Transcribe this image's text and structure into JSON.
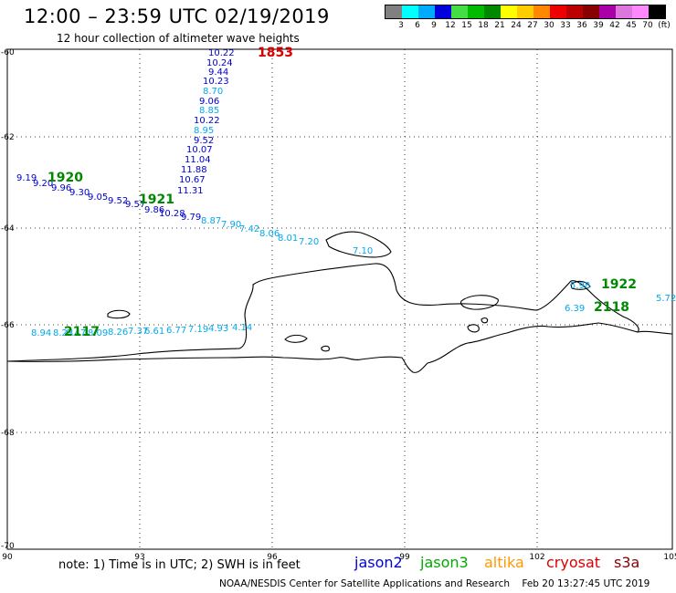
{
  "header": {
    "title": "12:00 – 23:59 UTC 02/19/2019",
    "subtitle": "12 hour collection of altimeter wave heights"
  },
  "legend": {
    "colors": [
      "#808080",
      "#00ffff",
      "#00aaff",
      "#0000dd",
      "#44dd44",
      "#00bb00",
      "#008800",
      "#ffff00",
      "#ffcc00",
      "#ff8800",
      "#ee0000",
      "#bb0000",
      "#880000",
      "#aa00aa",
      "#dd77dd",
      "#ff88ff",
      "#000000"
    ],
    "labels": [
      "3",
      "6",
      "9",
      "12",
      "15",
      "18",
      "21",
      "24",
      "27",
      "30",
      "33",
      "36",
      "39",
      "42",
      "45",
      "70",
      "(ft)"
    ]
  },
  "axes": {
    "lat_labels": [
      "-60",
      "-62",
      "-64",
      "-66",
      "-68",
      "-70"
    ],
    "lon_labels": [
      "90",
      "93",
      "96",
      "99",
      "102",
      "105"
    ]
  },
  "tracks": [
    {
      "sat": "jason2",
      "time": "1853",
      "time_color": "#dd0000",
      "points": [
        {
          "v": "10.22",
          "c": "#0000cc"
        },
        {
          "v": "10.24",
          "c": "#0000cc"
        },
        {
          "v": "9.44",
          "c": "#0000cc"
        },
        {
          "v": "10.23",
          "c": "#0000cc"
        },
        {
          "v": "8.70",
          "c": "#00aaee"
        },
        {
          "v": "9.06",
          "c": "#0000cc"
        },
        {
          "v": "8.85",
          "c": "#00aaee"
        },
        {
          "v": "10.22",
          "c": "#0000cc"
        },
        {
          "v": "8.95",
          "c": "#00aaee"
        },
        {
          "v": "9.52",
          "c": "#0000cc"
        },
        {
          "v": "10.07",
          "c": "#0000cc"
        },
        {
          "v": "11.04",
          "c": "#0000cc"
        },
        {
          "v": "11.88",
          "c": "#0000cc"
        },
        {
          "v": "10.67",
          "c": "#0000cc"
        },
        {
          "v": "11.31",
          "c": "#0000cc"
        }
      ]
    },
    {
      "sat": "jason3",
      "time": "1920",
      "time_color": "#008800",
      "points": [
        {
          "v": "9.19",
          "c": "#0000cc"
        },
        {
          "v": "9.20",
          "c": "#0000cc"
        },
        {
          "v": "9.96",
          "c": "#0000cc"
        },
        {
          "v": "9.30",
          "c": "#0000cc"
        },
        {
          "v": "9.05",
          "c": "#0000cc"
        },
        {
          "v": "9.52",
          "c": "#0000cc"
        },
        {
          "v": "9.57",
          "c": "#0000cc"
        },
        {
          "v": "9.86",
          "c": "#0000cc"
        },
        {
          "v": "10.28",
          "c": "#0000cc"
        },
        {
          "v": "9.79",
          "c": "#0000cc"
        },
        {
          "v": "8.87",
          "c": "#00aaee"
        },
        {
          "v": "7.90",
          "c": "#00aaee"
        },
        {
          "v": "7.42",
          "c": "#00aaee"
        },
        {
          "v": "8.06",
          "c": "#00aaee"
        },
        {
          "v": "8.01",
          "c": "#00aaee"
        },
        {
          "v": "7.20",
          "c": "#00aaee"
        },
        {
          "v": "7.10",
          "c": "#00aaee"
        }
      ]
    },
    {
      "sat": "jason3",
      "time": "1921",
      "time_color": "#008800",
      "points": []
    },
    {
      "sat": "jason3",
      "time": "2117",
      "time_color": "#008800",
      "points": [
        {
          "v": "8.94",
          "c": "#00aaee"
        },
        {
          "v": "8.23",
          "c": "#00aaee"
        },
        {
          "v": "8.47",
          "c": "#00aaee"
        },
        {
          "v": "8.09",
          "c": "#00aaee"
        },
        {
          "v": "8.26",
          "c": "#00aaee"
        },
        {
          "v": "7.37",
          "c": "#00aaee"
        },
        {
          "v": "6.61",
          "c": "#00aaee"
        },
        {
          "v": "6.77",
          "c": "#00aaee"
        },
        {
          "v": "7.19",
          "c": "#00aaee"
        },
        {
          "v": "4.93",
          "c": "#00aaee"
        },
        {
          "v": "4.14",
          "c": "#00aaee"
        }
      ]
    },
    {
      "sat": "jason3",
      "time": "1922",
      "time_color": "#008800",
      "points": [
        {
          "v": "5.98",
          "c": "#00aaee"
        }
      ]
    },
    {
      "sat": "jason3",
      "time": "2118",
      "time_color": "#008800",
      "points": [
        {
          "v": "6.39",
          "c": "#00aaee"
        },
        {
          "v": "5.72",
          "c": "#00aaee"
        }
      ]
    }
  ],
  "footer": {
    "note": "note:  1) Time is in UTC;  2) SWH is in feet",
    "satellites": [
      {
        "name": "jason2",
        "color": "#0000dd"
      },
      {
        "name": "jason3",
        "color": "#00aa00"
      },
      {
        "name": "altika",
        "color": "#ff9900"
      },
      {
        "name": "cryosat",
        "color": "#dd0000"
      },
      {
        "name": "s3a",
        "color": "#880000"
      }
    ],
    "credit": "NOAA/NESDIS Center for Satellite Applications and Research",
    "timestamp": "Feb 20 13:27:45 UTC 2019"
  }
}
